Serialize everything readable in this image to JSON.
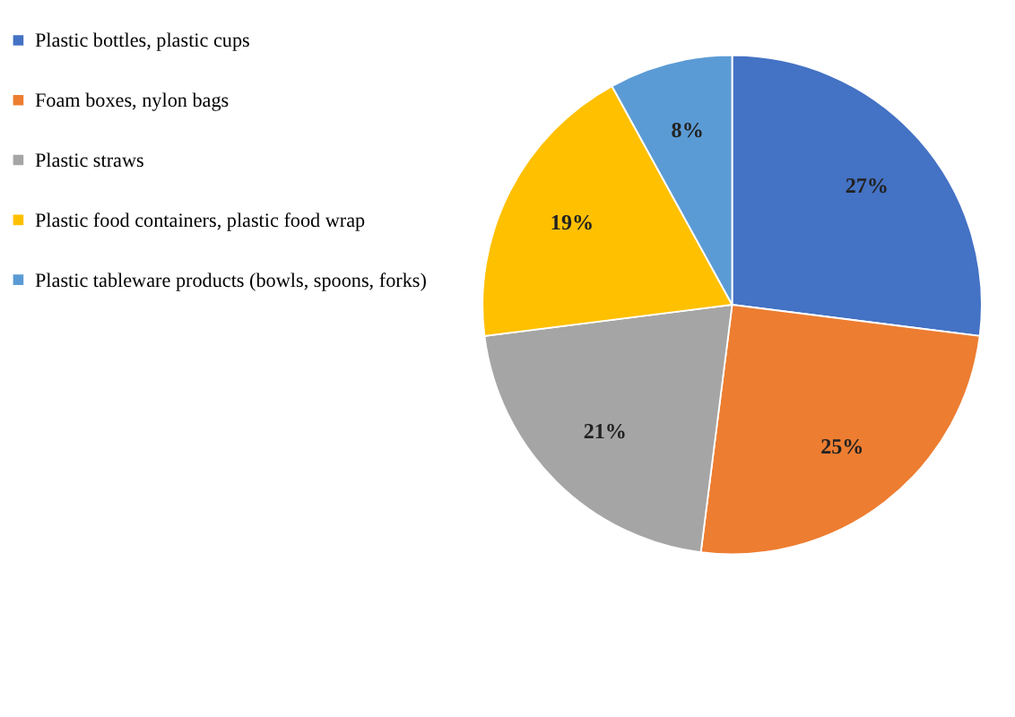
{
  "chart_data": {
    "type": "pie",
    "categories": [
      "Plastic bottles, plastic cups",
      "Foam boxes, nylon bags",
      "Plastic straws",
      "Plastic food containers, plastic food wrap",
      "Plastic tableware products (bowls, spoons, forks)"
    ],
    "values": [
      27,
      25,
      21,
      19,
      8
    ],
    "value_labels": [
      "27%",
      "25%",
      "21%",
      "19%",
      "8%"
    ],
    "colors": [
      "#4472c4",
      "#ed7d31",
      "#a5a5a5",
      "#ffc000",
      "#5b9bd5"
    ],
    "legend": "left"
  }
}
